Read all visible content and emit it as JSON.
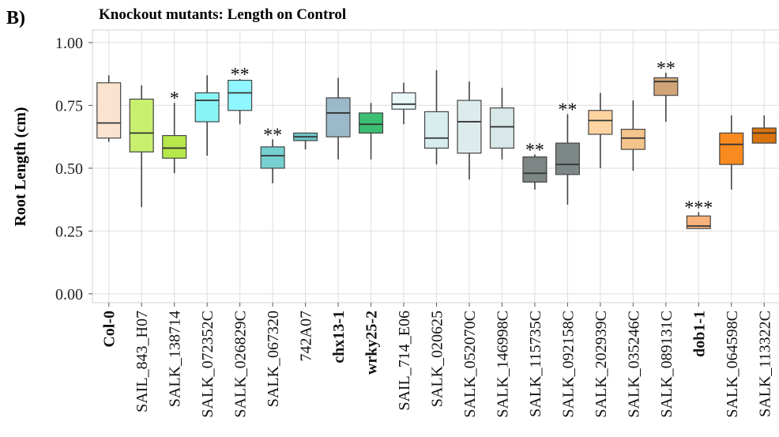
{
  "chart_data": {
    "type": "box",
    "panel_label": "B)",
    "title": "Knockout mutants: Length on Control",
    "y_label": "Root Length (cm)",
    "ylim": [
      -0.035,
      1.05
    ],
    "yticks": [
      {
        "value": 0,
        "label": "0.00"
      },
      {
        "value": 0.25,
        "label": "0.25"
      },
      {
        "value": 0.5,
        "label": "0.50"
      },
      {
        "value": 0.75,
        "label": "0.75"
      },
      {
        "value": 1,
        "label": "1.00"
      }
    ],
    "grid": true,
    "categories": [
      "Col-0",
      "SAIL_843_H07",
      "SALK_138714",
      "SALK_072352C",
      "SALK_026829C",
      "SALK_067320",
      "742A07",
      "chx13-1",
      "wrky25-2",
      "SAIL_714_E06",
      "SALK_020625",
      "SALK_052070C",
      "SALK_146998C",
      "SALK_115735C",
      "SALK_092158C",
      "SALK_202939C",
      "SALK_035246C",
      "SALK_089131C",
      "dob1-1",
      "SALK_064598C",
      "SALK_113322C"
    ],
    "bold": [
      true,
      false,
      false,
      false,
      false,
      false,
      false,
      true,
      true,
      false,
      false,
      false,
      false,
      false,
      false,
      false,
      false,
      false,
      true,
      false,
      false
    ],
    "significance": [
      null,
      null,
      "*",
      null,
      "**",
      "**",
      null,
      null,
      null,
      null,
      null,
      null,
      null,
      "**",
      "**",
      null,
      null,
      "**",
      "***",
      null,
      null
    ],
    "boxes": [
      {
        "low": 0.605,
        "q1": 0.62,
        "median": 0.68,
        "q3": 0.84,
        "high": 0.87,
        "color": "#fbe3cf"
      },
      {
        "low": 0.345,
        "q1": 0.565,
        "median": 0.64,
        "q3": 0.775,
        "high": 0.83,
        "color": "#c8ef6e"
      },
      {
        "low": 0.48,
        "q1": 0.54,
        "median": 0.58,
        "q3": 0.63,
        "high": 0.76,
        "color": "#b6e84c"
      },
      {
        "low": 0.55,
        "q1": 0.685,
        "median": 0.77,
        "q3": 0.8,
        "high": 0.87,
        "color": "#89f4f5"
      },
      {
        "low": 0.675,
        "q1": 0.73,
        "median": 0.8,
        "q3": 0.85,
        "high": 0.855,
        "color": "#8ff7ff"
      },
      {
        "low": 0.44,
        "q1": 0.5,
        "median": 0.55,
        "q3": 0.585,
        "high": 0.615,
        "color": "#76cfd0"
      },
      {
        "low": 0.575,
        "q1": 0.61,
        "median": 0.625,
        "q3": 0.64,
        "high": 0.64,
        "color": "#6cc5c5"
      },
      {
        "low": 0.535,
        "q1": 0.625,
        "median": 0.72,
        "q3": 0.78,
        "high": 0.86,
        "color": "#9ab9c9"
      },
      {
        "low": 0.535,
        "q1": 0.64,
        "median": 0.675,
        "q3": 0.72,
        "high": 0.76,
        "color": "#3bbf73"
      },
      {
        "low": 0.675,
        "q1": 0.735,
        "median": 0.755,
        "q3": 0.8,
        "high": 0.84,
        "color": "#eafafa"
      },
      {
        "low": 0.515,
        "q1": 0.58,
        "median": 0.62,
        "q3": 0.725,
        "high": 0.89,
        "color": "#d8eeee"
      },
      {
        "low": 0.455,
        "q1": 0.56,
        "median": 0.685,
        "q3": 0.77,
        "high": 0.845,
        "color": "#dcecec"
      },
      {
        "low": 0.535,
        "q1": 0.58,
        "median": 0.665,
        "q3": 0.74,
        "high": 0.82,
        "color": "#d8e8e8"
      },
      {
        "low": 0.415,
        "q1": 0.445,
        "median": 0.48,
        "q3": 0.545,
        "high": 0.555,
        "color": "#7d8585"
      },
      {
        "low": 0.355,
        "q1": 0.475,
        "median": 0.515,
        "q3": 0.6,
        "high": 0.715,
        "color": "#7e8787"
      },
      {
        "low": 0.5,
        "q1": 0.635,
        "median": 0.69,
        "q3": 0.73,
        "high": 0.8,
        "color": "#fdd4a2"
      },
      {
        "low": 0.49,
        "q1": 0.575,
        "median": 0.62,
        "q3": 0.655,
        "high": 0.77,
        "color": "#f5c48a"
      },
      {
        "low": 0.685,
        "q1": 0.79,
        "median": 0.845,
        "q3": 0.86,
        "high": 0.88,
        "color": "#d1a577"
      },
      {
        "low": 0.26,
        "q1": 0.26,
        "median": 0.27,
        "q3": 0.31,
        "high": 0.325,
        "color": "#f7b37a"
      },
      {
        "low": 0.415,
        "q1": 0.515,
        "median": 0.595,
        "q3": 0.64,
        "high": 0.71,
        "color": "#f98a1f"
      },
      {
        "low": 0.6,
        "q1": 0.6,
        "median": 0.64,
        "q3": 0.66,
        "high": 0.71,
        "color": "#d9730e"
      }
    ]
  }
}
